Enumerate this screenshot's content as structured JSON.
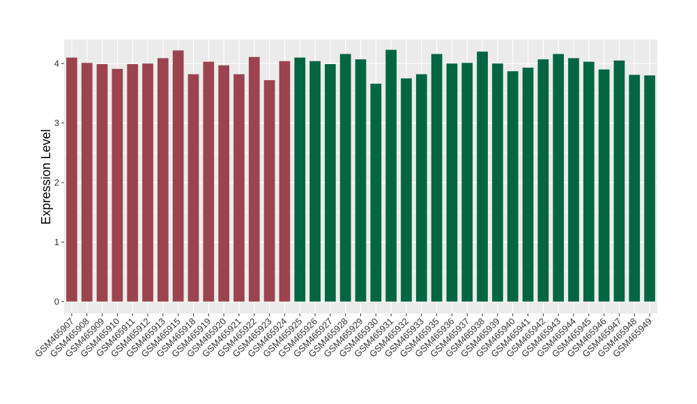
{
  "chart_data": {
    "type": "bar",
    "title": "",
    "xlabel": "",
    "ylabel": "Expression Level",
    "ylim": [
      -0.2,
      4.4
    ],
    "yticks": [
      0,
      1,
      2,
      3,
      4
    ],
    "grid": true,
    "legend": "none",
    "categories": [
      "GSM465907",
      "GSM465908",
      "GSM465909",
      "GSM465910",
      "GSM465911",
      "GSM465912",
      "GSM465913",
      "GSM465915",
      "GSM465918",
      "GSM465919",
      "GSM465920",
      "GSM465921",
      "GSM465922",
      "GSM465923",
      "GSM465924",
      "GSM465925",
      "GSM465926",
      "GSM465927",
      "GSM465928",
      "GSM465929",
      "GSM465930",
      "GSM465931",
      "GSM465932",
      "GSM465933",
      "GSM465935",
      "GSM465936",
      "GSM465937",
      "GSM465938",
      "GSM465939",
      "GSM465940",
      "GSM465941",
      "GSM465942",
      "GSM465943",
      "GSM465944",
      "GSM465945",
      "GSM465946",
      "GSM465947",
      "GSM465948",
      "GSM465949"
    ],
    "values": [
      4.1,
      4.01,
      3.99,
      3.91,
      3.99,
      4.0,
      4.09,
      4.22,
      3.82,
      4.03,
      3.97,
      3.82,
      4.11,
      3.72,
      4.04,
      4.1,
      4.04,
      3.99,
      4.16,
      4.07,
      3.66,
      4.23,
      3.75,
      3.82,
      4.16,
      4.0,
      4.01,
      4.2,
      4.0,
      3.87,
      3.93,
      4.07,
      4.16,
      4.09,
      4.03,
      3.9,
      4.05,
      3.81,
      3.8
    ],
    "groups": [
      0,
      0,
      0,
      0,
      0,
      0,
      0,
      0,
      0,
      0,
      0,
      0,
      0,
      0,
      0,
      1,
      1,
      1,
      1,
      1,
      1,
      1,
      1,
      1,
      1,
      1,
      1,
      1,
      1,
      1,
      1,
      1,
      1,
      1,
      1,
      1,
      1,
      1,
      1
    ],
    "colors": [
      "#9b4450",
      "#036642"
    ],
    "panel_background": "#ebebeb",
    "grid_color": "#ffffff"
  }
}
